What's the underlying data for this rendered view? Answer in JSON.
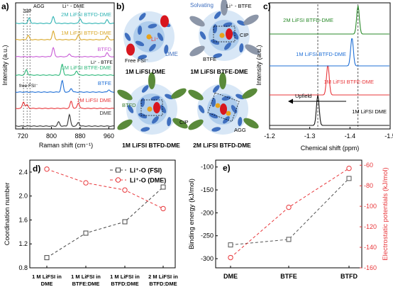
{
  "colors": {
    "dme": "#333333",
    "fsi_salt": "#e8363a",
    "btfe": "#1f6fd6",
    "btfe_dme": "#2db87a",
    "btfd": "#c85bd6",
    "btfd_dme": "#d9a82a",
    "two_m_btfd": "#2fb3b3",
    "nmr_dme": "#111111",
    "nmr_btfe": "#e8363a",
    "nmr_btfd": "#1f6fd6",
    "nmr_2m": "#2a8a2a",
    "coord_fsi": "#444444",
    "coord_dme": "#e8363a",
    "binding": "#555555",
    "esp": "#e8363a",
    "li_ion": "#e8a21a",
    "fsi_anion": "#d8161e",
    "dme_solvent": "#3f6fbf",
    "btfe_solvent": "#8c96a8",
    "btfd_solvent": "#5a8a3a",
    "shell": "#b8d3ee"
  },
  "panel_a": {
    "letter": "a)",
    "chart_data": {
      "type": "line",
      "xlabel": "Raman shift (cm⁻¹)",
      "ylabel": "Intensity (a.u.)",
      "xlim": [
        700,
        975
      ],
      "x_ticks": [
        "720",
        "800",
        "880",
        "960"
      ],
      "annotations": [
        "SIP",
        "AGG",
        "Li⁺ - DME",
        "Li⁺ - BTFE",
        "free FSI⁻"
      ],
      "series": [
        {
          "name": "DME",
          "color_key": "dme",
          "peaks": [
            [
              850,
              0.95
            ],
            [
              820,
              0.35
            ],
            [
              875,
              0.3
            ]
          ]
        },
        {
          "name": "1M LiFSI DME",
          "color_key": "fsi_salt",
          "peaks": [
            [
              722,
              0.55
            ],
            [
              732,
              0.3
            ],
            [
              855,
              0.6
            ],
            [
              875,
              0.45
            ]
          ]
        },
        {
          "name": "BTFE",
          "color_key": "btfe",
          "peaks": [
            [
              830,
              0.95
            ],
            [
              855,
              0.3
            ],
            [
              960,
              0.2
            ]
          ]
        },
        {
          "name": "1M LiFSI BTFE-DME",
          "color_key": "btfe_dme",
          "peaks": [
            [
              730,
              0.45
            ],
            [
              830,
              0.9
            ],
            [
              870,
              0.35
            ]
          ]
        },
        {
          "name": "BTFD",
          "color_key": "btfd",
          "peaks": [
            [
              805,
              0.75
            ],
            [
              850,
              0.25
            ],
            [
              955,
              0.35
            ]
          ]
        },
        {
          "name": "1M LiFSI BTFD-DME",
          "color_key": "btfd_dme",
          "peaks": [
            [
              735,
              0.35
            ],
            [
              805,
              0.7
            ],
            [
              875,
              0.35
            ],
            [
              955,
              0.3
            ]
          ]
        },
        {
          "name": "2M LiFSI BTFD-DME",
          "color_key": "two_m_btfd",
          "peaks": [
            [
              738,
              0.45
            ],
            [
              805,
              0.55
            ],
            [
              880,
              0.4
            ],
            [
              955,
              0.3
            ]
          ]
        }
      ]
    }
  },
  "panel_b": {
    "letter": "b)",
    "legend_solvating": "Solvating",
    "legend_dme": "DME",
    "legend_li": "Li⁺",
    "legend_free_fsi": "Free FSI⁻",
    "label_li_btfe": "Li⁺ - BTFE",
    "label_cip1": "CIP",
    "label_btfe": "BTFE",
    "label_btfd": "BTFD",
    "label_cip2": "CIP",
    "label_agg": "AGG",
    "captions": [
      "1M LiFSI DME",
      "1M LiFSI BTFE-DME",
      "1M LiFSI BTFD-DME",
      "2M LiFSI BTFD-DME"
    ]
  },
  "panel_c": {
    "letter": "c)",
    "chart_data": {
      "type": "line",
      "xlabel": "Chemical shift (ppm)",
      "ylabel": "Intensity (a.u.)",
      "xlim": [
        -1.2,
        -1.5
      ],
      "x_ticks": [
        "-1.2",
        "-1.3",
        "-1.4",
        "-1.5"
      ],
      "annotations": [
        "Upfield"
      ],
      "series": [
        {
          "name": "1M LiFSI DME",
          "color_key": "nmr_dme",
          "peak": -1.32
        },
        {
          "name": "1M LiFSI BTFE-DME",
          "color_key": "nmr_btfe",
          "peak": -1.345
        },
        {
          "name": "1M LiFSI BTFD-DME",
          "color_key": "nmr_btfd",
          "peak": -1.405
        },
        {
          "name": "2M LiFSI BTFD-DME",
          "color_key": "nmr_2m",
          "peak": -1.42
        }
      ]
    }
  },
  "panel_d": {
    "letter": "d)",
    "chart_data": {
      "type": "line",
      "xlabel": "",
      "ylabel": "Coordination number",
      "ylim": [
        0.8,
        2.6
      ],
      "y_ticks": [
        "0.8",
        "1.2",
        "1.6",
        "2.0",
        "2.4"
      ],
      "categories": [
        [
          "1 M LiFSI in",
          "DME"
        ],
        [
          "1 M LiFSI in",
          "BTFE:DME"
        ],
        [
          "1 M LiFSI in",
          "BTFD:DME"
        ],
        [
          "2 M LiFSI in",
          "BTFD:DME"
        ]
      ],
      "series": [
        {
          "name": "Li⁺-O (FSI)",
          "color_key": "coord_fsi",
          "values": [
            0.97,
            1.38,
            1.57,
            2.15
          ]
        },
        {
          "name": "Li⁺-O (DME)",
          "color_key": "coord_dme",
          "values": [
            2.45,
            2.22,
            2.1,
            1.79
          ]
        }
      ]
    }
  },
  "panel_e": {
    "letter": "e)",
    "chart_data": {
      "type": "line",
      "xlabel": "",
      "ylabel": "Binding energy (kJ/mol)",
      "ylabel_right": "Electrostatic potentials (kJ/mol)",
      "ylim": [
        -320,
        -85
      ],
      "y_ticks": [
        "-300",
        "-250",
        "-200",
        "-150",
        "-100"
      ],
      "ylim_right": [
        -160,
        -55
      ],
      "y_ticks_right": [
        "-160",
        "-140",
        "-120",
        "-100",
        "-80",
        "-60"
      ],
      "categories": [
        "DME",
        "BTFE",
        "BTFD"
      ],
      "series": [
        {
          "name": "Binding energy",
          "axis": "left",
          "color_key": "binding",
          "values": [
            -270,
            -258,
            -125
          ]
        },
        {
          "name": "Electrostatic potentials",
          "axis": "right",
          "color_key": "esp",
          "values": [
            -150,
            -101,
            -63
          ]
        }
      ]
    }
  }
}
